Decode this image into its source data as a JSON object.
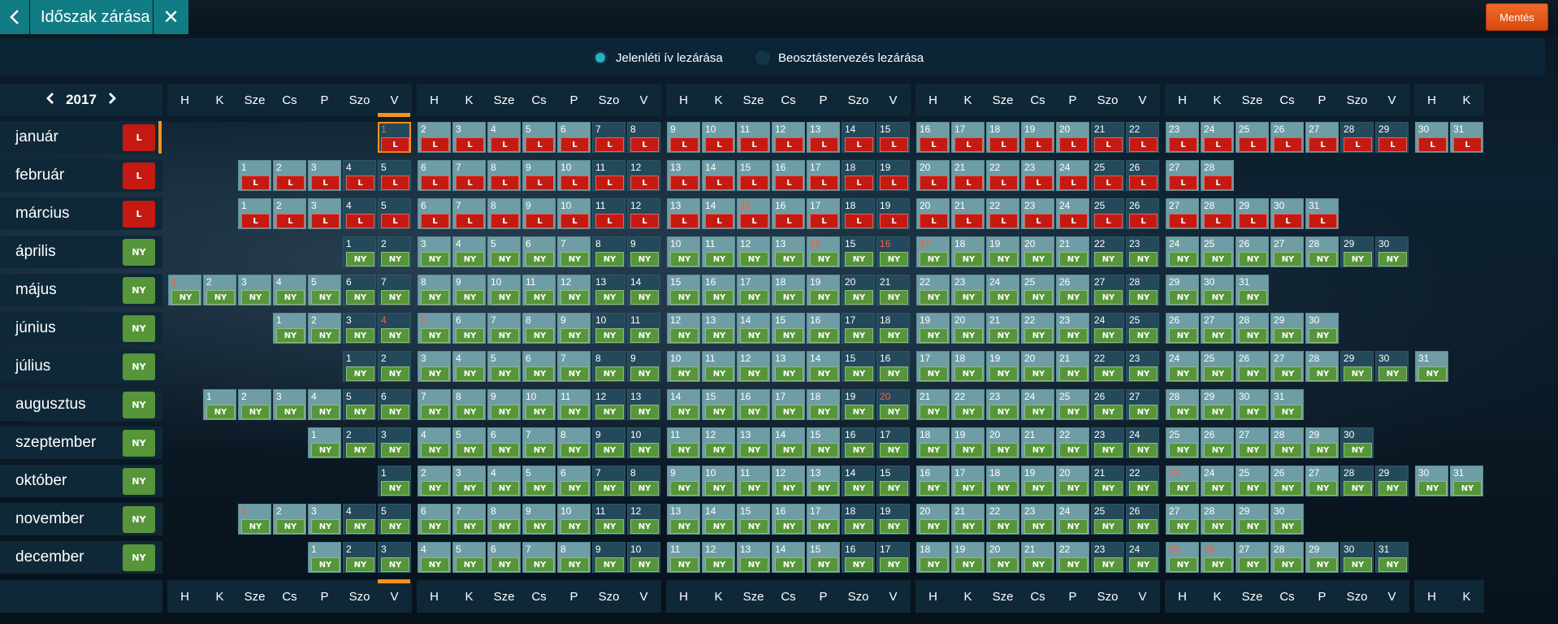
{
  "header": {
    "back_icon": "chevron-left-icon",
    "title": "Időszak zárása",
    "close_icon": "close-icon",
    "close_glyph": "✕",
    "save_label": "Mentés"
  },
  "options": {
    "attendance_label": "Jelenléti ív lezárása",
    "attendance_selected": true,
    "schedule_label": "Beosztástervezés lezárása",
    "schedule_selected": false
  },
  "year_nav": {
    "year": "2017",
    "prev_glyph": "❮",
    "next_glyph": "❯"
  },
  "weekday_headers": [
    "H",
    "K",
    "Sze",
    "Cs",
    "P",
    "Szo",
    "V",
    "H",
    "K",
    "Sze",
    "Cs",
    "P",
    "Szo",
    "V",
    "H",
    "K",
    "Sze",
    "Cs",
    "P",
    "Szo",
    "V",
    "H",
    "K",
    "Sze",
    "Cs",
    "P",
    "Szo",
    "V",
    "H",
    "K",
    "Sze",
    "Cs",
    "P",
    "Szo",
    "V",
    "H",
    "K"
  ],
  "colors": {
    "closed": "#c41a12",
    "open": "#56953a",
    "accent": "#f5921e",
    "holiday_text": "#ff5b3a"
  },
  "selected_month": "január",
  "selected_day": 1,
  "months": [
    {
      "name": "január",
      "status": "L",
      "start_col": 6,
      "days": 31,
      "holidays": [
        1
      ]
    },
    {
      "name": "február",
      "status": "L",
      "start_col": 2,
      "days": 28,
      "holidays": []
    },
    {
      "name": "március",
      "status": "L",
      "start_col": 2,
      "days": 31,
      "holidays": [
        15
      ]
    },
    {
      "name": "április",
      "status": "NY",
      "start_col": 5,
      "days": 30,
      "holidays": [
        14,
        16,
        17
      ]
    },
    {
      "name": "május",
      "status": "NY",
      "start_col": 0,
      "days": 31,
      "holidays": [
        1
      ]
    },
    {
      "name": "június",
      "status": "NY",
      "start_col": 3,
      "days": 30,
      "holidays": [
        4,
        5
      ]
    },
    {
      "name": "július",
      "status": "NY",
      "start_col": 5,
      "days": 31,
      "holidays": []
    },
    {
      "name": "augusztus",
      "status": "NY",
      "start_col": 1,
      "days": 31,
      "holidays": [
        20
      ]
    },
    {
      "name": "szeptember",
      "status": "NY",
      "start_col": 4,
      "days": 30,
      "holidays": []
    },
    {
      "name": "október",
      "status": "NY",
      "start_col": 6,
      "days": 31,
      "holidays": [
        23
      ]
    },
    {
      "name": "november",
      "status": "NY",
      "start_col": 2,
      "days": 30,
      "holidays": [
        1
      ]
    },
    {
      "name": "december",
      "status": "NY",
      "start_col": 4,
      "days": 31,
      "holidays": [
        25,
        26
      ]
    }
  ]
}
